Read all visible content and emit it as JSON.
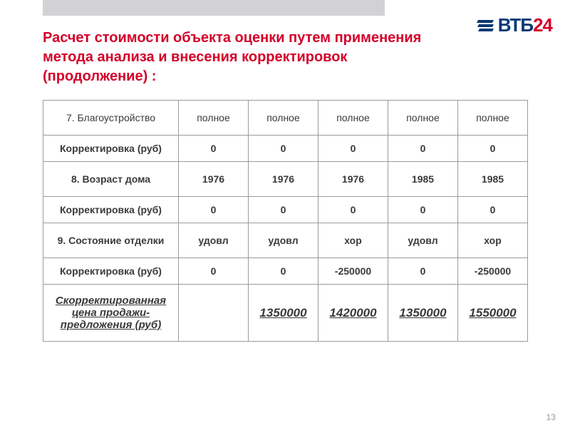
{
  "brand": {
    "name_primary": "ВТБ",
    "name_secondary": "24",
    "primary_color": "#003876",
    "secondary_color": "#d4002a"
  },
  "title": "Расчет стоимости объекта оценки путем применения метода анализа и внесения корректировок (продолжение) :",
  "table": {
    "columns_count": 6,
    "rows": [
      {
        "label": "7. Благоустройство",
        "cells": [
          "полное",
          "полное",
          "полное",
          "полное",
          "полное"
        ],
        "style": "tall"
      },
      {
        "label": "Корректировка (руб)",
        "cells": [
          "0",
          "0",
          "0",
          "0",
          "0"
        ],
        "style": "corr"
      },
      {
        "label": "8. Возраст дома",
        "cells": [
          "1976",
          "1976",
          "1976",
          "1985",
          "1985"
        ],
        "style": "tall bold"
      },
      {
        "label": "Корректировка (руб)",
        "cells": [
          "0",
          "0",
          "0",
          "0",
          "0"
        ],
        "style": "corr"
      },
      {
        "label": "9. Состояние отделки",
        "cells": [
          "удовл",
          "удовл",
          "хор",
          "удовл",
          "хор"
        ],
        "style": "tall bold"
      },
      {
        "label": "Корректировка (руб)",
        "cells": [
          "0",
          "0",
          "-250000",
          "0",
          "-250000"
        ],
        "style": "corr"
      },
      {
        "label": "Скорректированная цена продажи-предложения (руб)",
        "cells": [
          "",
          "1350000",
          "1420000",
          "1350000",
          "1550000"
        ],
        "style": "final"
      }
    ]
  },
  "page_number": "13"
}
